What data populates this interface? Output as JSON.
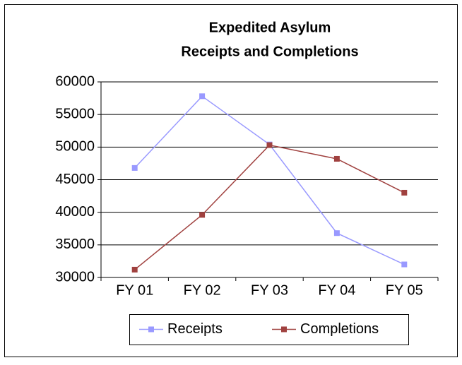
{
  "chart_data": {
    "type": "line",
    "title": [
      "Expedited Asylum",
      "Receipts and Completions"
    ],
    "categories": [
      "FY 01",
      "FY 02",
      "FY 03",
      "FY 04",
      "FY 05"
    ],
    "series": [
      {
        "name": "Receipts",
        "color": "#9999ff",
        "values": [
          46800,
          57800,
          50400,
          36800,
          32000
        ]
      },
      {
        "name": "Completions",
        "color": "#a0413f",
        "values": [
          31200,
          39600,
          50300,
          48200,
          43000
        ]
      }
    ],
    "ylim": [
      30000,
      60000
    ],
    "yticks": [
      30000,
      35000,
      40000,
      45000,
      50000,
      55000,
      60000
    ],
    "grid": true,
    "legend": "bottom"
  }
}
